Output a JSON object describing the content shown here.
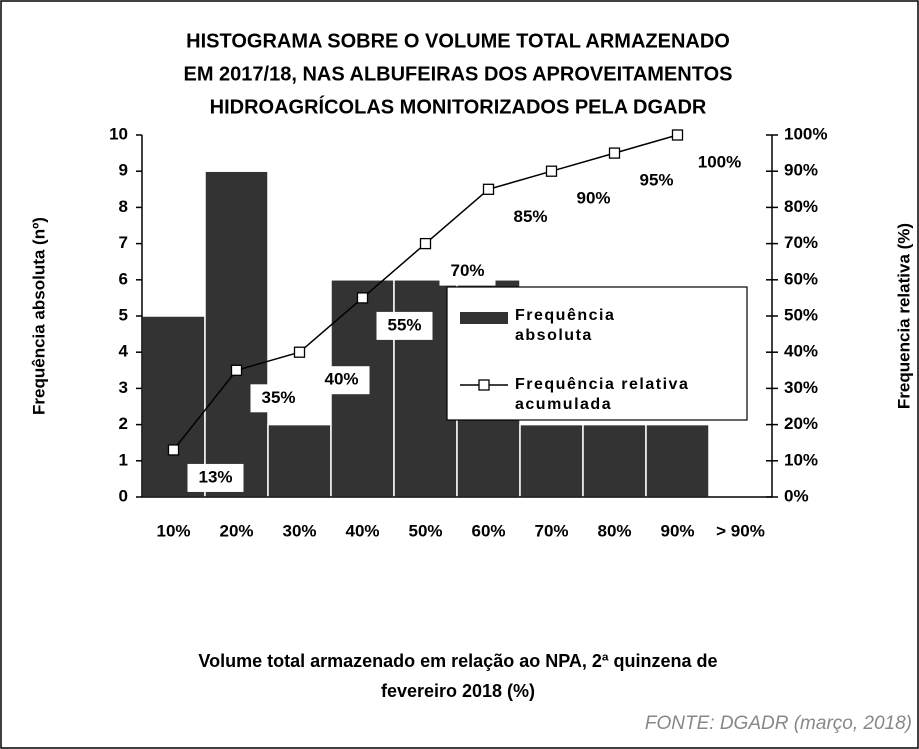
{
  "chart_data": {
    "type": "bar",
    "title": [
      "HISTOGRAMA SOBRE O VOLUME TOTAL ARMAZENADO",
      "EM 2017/18, NAS ALBUFEIRAS DOS APROVEITAMENTOS",
      "HIDROAGRÍCOLAS MONITORIZADOS PELA DGADR"
    ],
    "categories": [
      "10%",
      "20%",
      "30%",
      "40%",
      "50%",
      "60%",
      "70%",
      "80%",
      "90%",
      "> 90%"
    ],
    "series": [
      {
        "name": "Frequência absoluta",
        "type": "bar",
        "color": "#333333",
        "values": [
          5,
          9,
          2,
          6,
          6,
          6,
          2,
          2,
          2,
          0
        ]
      },
      {
        "name": "Frequência relativa acumulada",
        "type": "line",
        "axis": "y2",
        "color": "#000000",
        "values": [
          13,
          35,
          40,
          55,
          70,
          85,
          90,
          95,
          100,
          null
        ],
        "value_labels": [
          "13%",
          "35%",
          "40%",
          "55%",
          "70%",
          "85%",
          "90%",
          "95%",
          "100%",
          null
        ]
      }
    ],
    "ylim": [
      0,
      10
    ],
    "yticks": [
      0,
      1,
      2,
      3,
      4,
      5,
      6,
      7,
      8,
      9,
      10
    ],
    "y2lim": [
      0,
      100
    ],
    "y2ticks": [
      {
        "value": 0,
        "label": "0%"
      },
      {
        "value": 10,
        "label": "10%"
      },
      {
        "value": 20,
        "label": "20%"
      },
      {
        "value": 30,
        "label": "30%"
      },
      {
        "value": 40,
        "label": "40%"
      },
      {
        "value": 50,
        "label": "50%"
      },
      {
        "value": 60,
        "label": "60%"
      },
      {
        "value": 70,
        "label": "70%"
      },
      {
        "value": 80,
        "label": "80%"
      },
      {
        "value": 90,
        "label": "90%"
      },
      {
        "value": 100,
        "label": "100%"
      }
    ],
    "ylabel": "Frequência absoluta (nº)",
    "y2label": "Frequencia relativa (%)",
    "xlabel": [
      "Volume total armazenado em relação ao NPA,  2ª quinzena de",
      "fevereiro 2018 (%)"
    ],
    "source": "FONTE: DGADR (março, 2018)"
  }
}
